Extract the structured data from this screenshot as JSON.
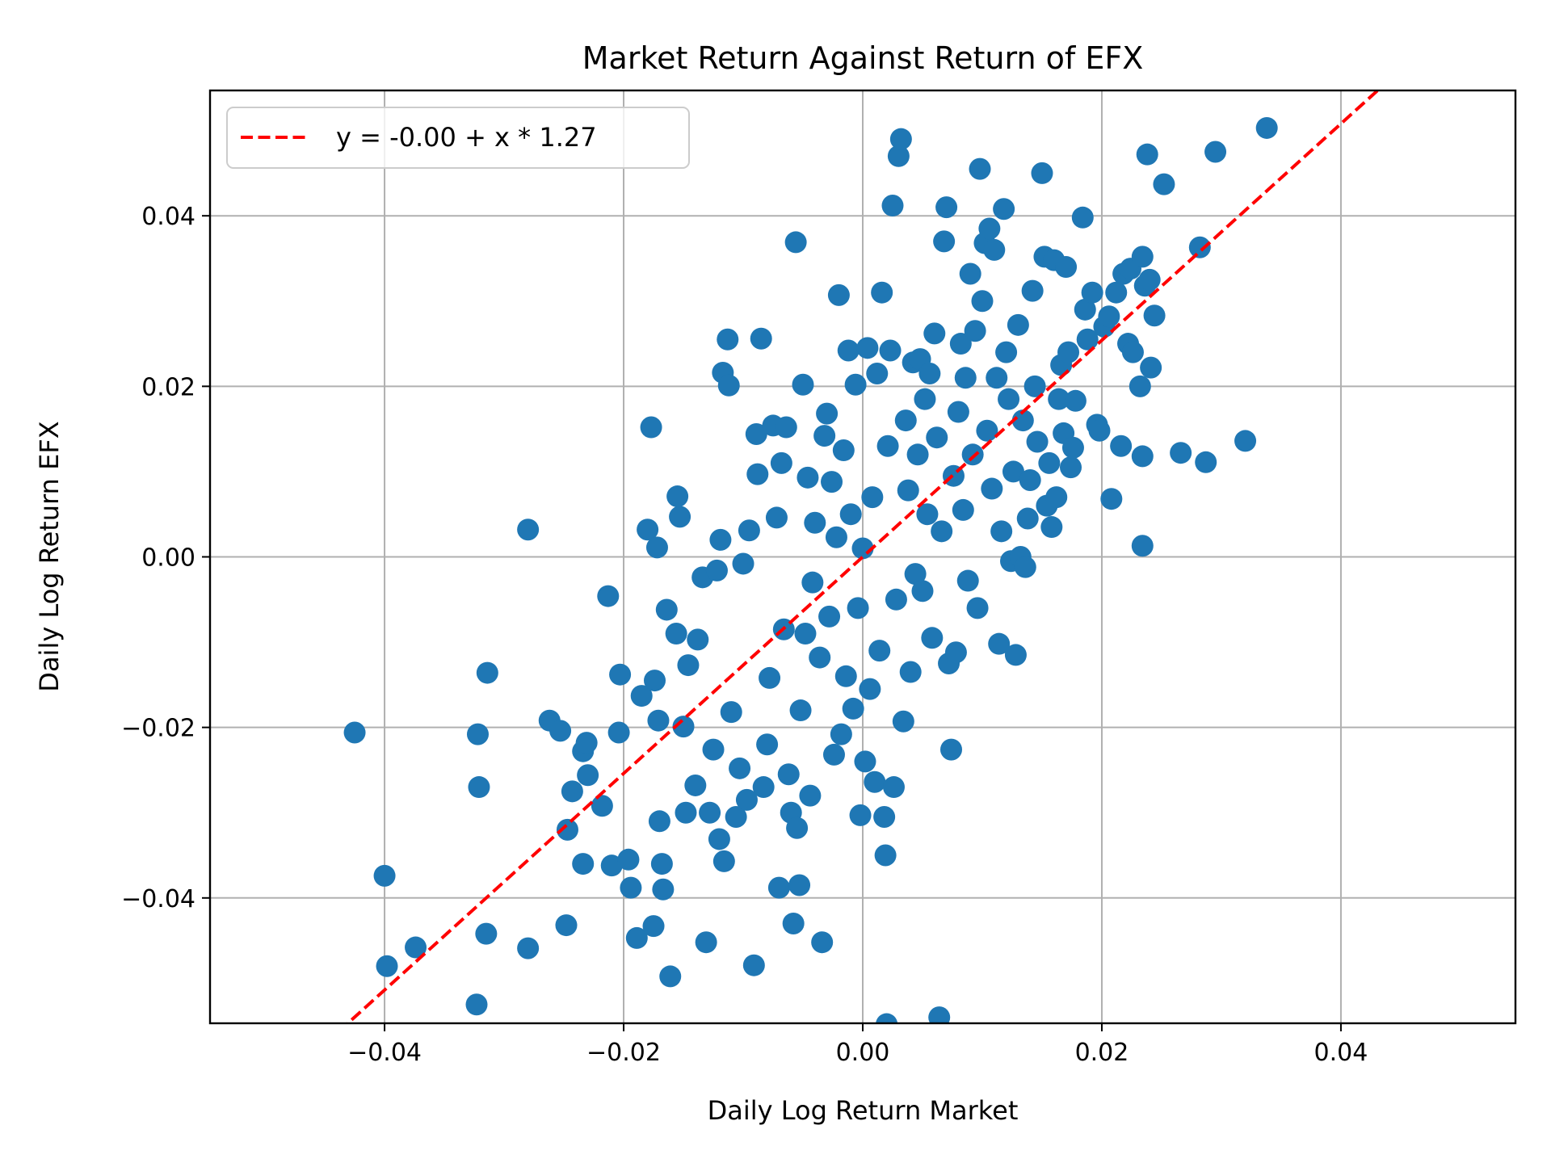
{
  "chart_data": {
    "type": "scatter",
    "title": "Market Return Against Return of EFX",
    "xlabel": "Daily Log Return Market",
    "ylabel": "Daily Log Return EFX",
    "xlim": [
      -0.0546,
      0.0546
    ],
    "ylim": [
      -0.0547,
      0.0547
    ],
    "xticks": [
      -0.04,
      -0.02,
      0.0,
      0.02,
      0.04
    ],
    "xtick_labels": [
      "−0.04",
      "−0.02",
      "0.00",
      "0.02",
      "0.04"
    ],
    "yticks": [
      -0.04,
      -0.02,
      0.0,
      0.02,
      0.04
    ],
    "ytick_labels": [
      "−0.04",
      "−0.02",
      "0.00",
      "0.02",
      "0.04"
    ],
    "grid": true,
    "legend_position": "upper left",
    "colors": {
      "points": "#1f77b4",
      "fit_line": "#ff0000",
      "grid": "#b0b0b0"
    },
    "fit_line": {
      "label": "y = -0.00 + x * 1.27",
      "intercept": 0.0,
      "slope": 1.27,
      "style": "dashed"
    },
    "series": [
      {
        "name": "EFX vs Market",
        "points": [
          [
            -0.0425,
            -0.0206
          ],
          [
            -0.04,
            -0.0374
          ],
          [
            -0.0398,
            -0.048
          ],
          [
            -0.0374,
            -0.0458
          ],
          [
            -0.0323,
            -0.0525
          ],
          [
            -0.0322,
            -0.0208
          ],
          [
            -0.0321,
            -0.027
          ],
          [
            -0.0315,
            -0.0442
          ],
          [
            -0.0314,
            -0.0136
          ],
          [
            -0.028,
            -0.0459
          ],
          [
            -0.028,
            0.0032
          ],
          [
            -0.0262,
            -0.0192
          ],
          [
            -0.0253,
            -0.0204
          ],
          [
            -0.0248,
            -0.0432
          ],
          [
            -0.0247,
            -0.032
          ],
          [
            -0.0243,
            -0.0275
          ],
          [
            -0.0234,
            -0.036
          ],
          [
            -0.0234,
            -0.0228
          ],
          [
            -0.0231,
            -0.0218
          ],
          [
            -0.023,
            -0.0256
          ],
          [
            -0.0218,
            -0.0292
          ],
          [
            -0.0213,
            -0.0046
          ],
          [
            -0.021,
            -0.0362
          ],
          [
            -0.0204,
            -0.0206
          ],
          [
            -0.0203,
            -0.0138
          ],
          [
            -0.0196,
            -0.0355
          ],
          [
            -0.0194,
            -0.0388
          ],
          [
            -0.0189,
            -0.0447
          ],
          [
            -0.0185,
            -0.0163
          ],
          [
            -0.018,
            0.0032
          ],
          [
            -0.0177,
            0.0152
          ],
          [
            -0.0175,
            -0.0433
          ],
          [
            -0.0174,
            -0.0145
          ],
          [
            -0.0172,
            0.0011
          ],
          [
            -0.0171,
            -0.0192
          ],
          [
            -0.017,
            -0.031
          ],
          [
            -0.0168,
            -0.036
          ],
          [
            -0.0167,
            -0.039
          ],
          [
            -0.0164,
            -0.0062
          ],
          [
            -0.0161,
            -0.0492
          ],
          [
            -0.0156,
            -0.009
          ],
          [
            -0.0155,
            0.0071
          ],
          [
            -0.0153,
            0.0047
          ],
          [
            -0.015,
            -0.0199
          ],
          [
            -0.0148,
            -0.03
          ],
          [
            -0.0146,
            -0.0127
          ],
          [
            -0.014,
            -0.0268
          ],
          [
            -0.0138,
            -0.0097
          ],
          [
            -0.0134,
            -0.0024
          ],
          [
            -0.0131,
            -0.0452
          ],
          [
            -0.0128,
            -0.03
          ],
          [
            -0.0125,
            -0.0226
          ],
          [
            -0.0122,
            -0.0016
          ],
          [
            -0.012,
            -0.0331
          ],
          [
            -0.0119,
            0.002
          ],
          [
            -0.0117,
            0.0216
          ],
          [
            -0.0116,
            -0.0357
          ],
          [
            -0.0113,
            0.0255
          ],
          [
            -0.0112,
            0.0201
          ],
          [
            -0.011,
            -0.0182
          ],
          [
            -0.0106,
            -0.0305
          ],
          [
            -0.0103,
            -0.0248
          ],
          [
            -0.01,
            -0.0008
          ],
          [
            -0.0097,
            -0.0285
          ],
          [
            -0.0095,
            0.0031
          ],
          [
            -0.0091,
            -0.0479
          ],
          [
            -0.0089,
            0.0144
          ],
          [
            -0.0088,
            0.0097
          ],
          [
            -0.0085,
            0.0256
          ],
          [
            -0.0083,
            -0.027
          ],
          [
            -0.008,
            -0.022
          ],
          [
            -0.0078,
            -0.0142
          ],
          [
            -0.0075,
            0.0154
          ],
          [
            -0.0072,
            0.0046
          ],
          [
            -0.007,
            -0.0388
          ],
          [
            -0.0068,
            0.011
          ],
          [
            -0.0066,
            -0.0085
          ],
          [
            -0.0064,
            0.0152
          ],
          [
            -0.0062,
            -0.0255
          ],
          [
            -0.006,
            -0.03
          ],
          [
            -0.0058,
            -0.043
          ],
          [
            -0.0056,
            0.0369
          ],
          [
            -0.0055,
            -0.0318
          ],
          [
            -0.0053,
            -0.0385
          ],
          [
            -0.0052,
            -0.018
          ],
          [
            -0.005,
            0.0202
          ],
          [
            -0.0048,
            -0.009
          ],
          [
            -0.0046,
            0.0093
          ],
          [
            -0.0044,
            -0.028
          ],
          [
            -0.0042,
            -0.003
          ],
          [
            -0.004,
            0.004
          ],
          [
            -0.0036,
            -0.0118
          ],
          [
            -0.0034,
            -0.0452
          ],
          [
            -0.0032,
            0.0142
          ],
          [
            -0.003,
            0.0168
          ],
          [
            -0.0028,
            -0.007
          ],
          [
            -0.0026,
            0.0088
          ],
          [
            -0.0024,
            -0.0232
          ],
          [
            -0.0022,
            0.0023
          ],
          [
            -0.002,
            0.0307
          ],
          [
            -0.0018,
            -0.0208
          ],
          [
            -0.0016,
            0.0125
          ],
          [
            -0.0014,
            -0.014
          ],
          [
            -0.0012,
            0.0242
          ],
          [
            -0.001,
            0.005
          ],
          [
            -0.0008,
            -0.0178
          ],
          [
            -0.0006,
            0.0202
          ],
          [
            -0.0004,
            -0.006
          ],
          [
            -0.0002,
            -0.0303
          ],
          [
            0.0,
            0.001
          ],
          [
            0.0002,
            -0.024
          ],
          [
            0.0004,
            0.0245
          ],
          [
            0.0006,
            -0.0155
          ],
          [
            0.0008,
            0.007
          ],
          [
            0.001,
            -0.0264
          ],
          [
            0.0012,
            0.0215
          ],
          [
            0.0014,
            -0.011
          ],
          [
            0.0016,
            0.031
          ],
          [
            0.0018,
            -0.0305
          ],
          [
            0.0019,
            -0.035
          ],
          [
            0.002,
            -0.0548
          ],
          [
            0.0021,
            0.013
          ],
          [
            0.0023,
            0.0242
          ],
          [
            0.0025,
            0.0412
          ],
          [
            0.0026,
            -0.027
          ],
          [
            0.0028,
            -0.005
          ],
          [
            0.003,
            0.047
          ],
          [
            0.0032,
            0.049
          ],
          [
            0.0034,
            -0.0193
          ],
          [
            0.0036,
            0.016
          ],
          [
            0.0038,
            0.0078
          ],
          [
            0.004,
            -0.0135
          ],
          [
            0.0042,
            0.0228
          ],
          [
            0.0044,
            -0.002
          ],
          [
            0.0046,
            0.012
          ],
          [
            0.0048,
            0.0232
          ],
          [
            0.005,
            -0.004
          ],
          [
            0.0052,
            0.0185
          ],
          [
            0.0054,
            0.005
          ],
          [
            0.0056,
            0.0215
          ],
          [
            0.0058,
            -0.0095
          ],
          [
            0.006,
            0.0262
          ],
          [
            0.0062,
            0.014
          ],
          [
            0.0064,
            -0.054
          ],
          [
            0.0066,
            0.003
          ],
          [
            0.0068,
            0.037
          ],
          [
            0.007,
            0.041
          ],
          [
            0.0072,
            -0.0125
          ],
          [
            0.0074,
            -0.0226
          ],
          [
            0.0076,
            0.0095
          ],
          [
            0.0078,
            -0.0112
          ],
          [
            0.008,
            0.017
          ],
          [
            0.0082,
            0.025
          ],
          [
            0.0084,
            0.0055
          ],
          [
            0.0086,
            0.021
          ],
          [
            0.0088,
            -0.0028
          ],
          [
            0.009,
            0.0332
          ],
          [
            0.0092,
            0.012
          ],
          [
            0.0094,
            0.0265
          ],
          [
            0.0096,
            -0.006
          ],
          [
            0.0098,
            0.0455
          ],
          [
            0.01,
            0.03
          ],
          [
            0.0102,
            0.0368
          ],
          [
            0.0104,
            0.0148
          ],
          [
            0.0106,
            0.0385
          ],
          [
            0.0108,
            0.008
          ],
          [
            0.011,
            0.036
          ],
          [
            0.0112,
            0.021
          ],
          [
            0.0114,
            -0.0102
          ],
          [
            0.0116,
            0.003
          ],
          [
            0.0118,
            0.0408
          ],
          [
            0.012,
            0.024
          ],
          [
            0.0122,
            0.0185
          ],
          [
            0.0124,
            -0.0005
          ],
          [
            0.0126,
            0.01
          ],
          [
            0.0128,
            -0.0115
          ],
          [
            0.013,
            0.0272
          ],
          [
            0.0132,
            0.0
          ],
          [
            0.0134,
            0.016
          ],
          [
            0.0136,
            -0.0012
          ],
          [
            0.0138,
            0.0045
          ],
          [
            0.014,
            0.009
          ],
          [
            0.0142,
            0.0312
          ],
          [
            0.0144,
            0.02
          ],
          [
            0.0146,
            0.0135
          ],
          [
            0.015,
            0.045
          ],
          [
            0.0152,
            0.0352
          ],
          [
            0.0154,
            0.006
          ],
          [
            0.0156,
            0.011
          ],
          [
            0.0158,
            0.0035
          ],
          [
            0.016,
            0.0348
          ],
          [
            0.0162,
            0.007
          ],
          [
            0.0164,
            0.0185
          ],
          [
            0.0166,
            0.0225
          ],
          [
            0.0168,
            0.0145
          ],
          [
            0.017,
            0.034
          ],
          [
            0.0172,
            0.024
          ],
          [
            0.0174,
            0.0105
          ],
          [
            0.0176,
            0.0128
          ],
          [
            0.0178,
            0.0183
          ],
          [
            0.0184,
            0.0398
          ],
          [
            0.0186,
            0.029
          ],
          [
            0.0188,
            0.0255
          ],
          [
            0.0192,
            0.031
          ],
          [
            0.0196,
            0.0155
          ],
          [
            0.0198,
            0.0148
          ],
          [
            0.0202,
            0.027
          ],
          [
            0.0206,
            0.0282
          ],
          [
            0.0208,
            0.0068
          ],
          [
            0.0212,
            0.031
          ],
          [
            0.0216,
            0.013
          ],
          [
            0.0218,
            0.0332
          ],
          [
            0.0222,
            0.025
          ],
          [
            0.0224,
            0.0338
          ],
          [
            0.0226,
            0.024
          ],
          [
            0.0232,
            0.02
          ],
          [
            0.0234,
            0.0352
          ],
          [
            0.0234,
            0.0118
          ],
          [
            0.0234,
            0.0013
          ],
          [
            0.0236,
            0.0318
          ],
          [
            0.0238,
            0.0472
          ],
          [
            0.024,
            0.0325
          ],
          [
            0.0241,
            0.0222
          ],
          [
            0.0244,
            0.0283
          ],
          [
            0.0252,
            0.0437
          ],
          [
            0.0266,
            0.0122
          ],
          [
            0.0282,
            0.0363
          ],
          [
            0.0287,
            0.0111
          ],
          [
            0.0295,
            0.0475
          ],
          [
            0.032,
            0.0136
          ],
          [
            0.0338,
            0.0503
          ]
        ]
      }
    ]
  }
}
